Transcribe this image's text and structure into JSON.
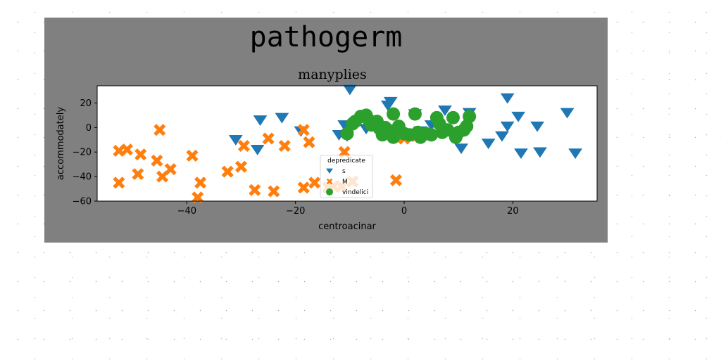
{
  "chart_data": {
    "type": "scatter",
    "suptitle": "pathogerm",
    "title": "manyplies",
    "xlabel": "centroacinar",
    "ylabel": "accommodately",
    "xlim": [
      -56.5,
      35.5
    ],
    "ylim": [
      -60,
      34
    ],
    "xticks": [
      -40,
      -20,
      0,
      20
    ],
    "yticks": [
      -60,
      -40,
      -20,
      0,
      20
    ],
    "legend": {
      "title": "depredicate",
      "placement": "lower-center"
    },
    "background": "#808080",
    "series": [
      {
        "name": "s",
        "marker": "triangle-down",
        "color": "#1f77b4",
        "points": [
          [
            -10,
            31
          ],
          [
            -2.5,
            21
          ],
          [
            -3,
            18
          ],
          [
            2,
            11
          ],
          [
            7.5,
            14
          ],
          [
            12,
            12
          ],
          [
            19,
            24
          ],
          [
            -22.5,
            8
          ],
          [
            -26.5,
            6
          ],
          [
            -11,
            2
          ],
          [
            -9,
            3
          ],
          [
            -19,
            -3
          ],
          [
            -31,
            -10
          ],
          [
            -27,
            -18
          ],
          [
            -10.5,
            -7
          ],
          [
            -12,
            -6
          ],
          [
            10.5,
            -17
          ],
          [
            15.5,
            -13
          ],
          [
            18,
            -7
          ],
          [
            19,
            1
          ],
          [
            21,
            9
          ],
          [
            21.5,
            -21
          ],
          [
            24.5,
            1
          ],
          [
            25,
            -20
          ],
          [
            30,
            12
          ],
          [
            31.5,
            -21
          ],
          [
            -7,
            -1
          ],
          [
            5,
            2
          ],
          [
            3,
            -3
          ]
        ]
      },
      {
        "name": "M",
        "marker": "X",
        "color": "#ff7f0e",
        "points": [
          [
            -52.5,
            -19
          ],
          [
            -51,
            -18
          ],
          [
            -52.5,
            -45
          ],
          [
            -49,
            -38
          ],
          [
            -48.5,
            -22
          ],
          [
            -45.5,
            -27
          ],
          [
            -45,
            -2
          ],
          [
            -44.5,
            -40
          ],
          [
            -43,
            -34
          ],
          [
            -39,
            -23
          ],
          [
            -38,
            -57
          ],
          [
            -37.5,
            -45
          ],
          [
            -32.5,
            -36
          ],
          [
            -30,
            -32
          ],
          [
            -29.5,
            -15
          ],
          [
            -27.5,
            -51
          ],
          [
            -25,
            -9
          ],
          [
            -24,
            -52
          ],
          [
            -22,
            -15
          ],
          [
            -18.5,
            -49
          ],
          [
            -18.5,
            -2
          ],
          [
            -17.5,
            -12
          ],
          [
            -16.5,
            -45
          ],
          [
            -14,
            -49
          ],
          [
            -13,
            -48
          ],
          [
            -11,
            -20
          ],
          [
            -11.5,
            -48
          ],
          [
            -9.5,
            -44
          ],
          [
            -1.5,
            -43
          ],
          [
            -1.5,
            -8
          ],
          [
            0,
            -9
          ],
          [
            1,
            -7
          ]
        ]
      },
      {
        "name": "vindelici",
        "marker": "circle",
        "color": "#2ca02c",
        "points": [
          [
            -10.5,
            -5
          ],
          [
            -9.5,
            3
          ],
          [
            -9,
            5
          ],
          [
            -8,
            9
          ],
          [
            -7,
            10
          ],
          [
            -6.5,
            6
          ],
          [
            -6,
            2
          ],
          [
            -5,
            5
          ],
          [
            -4.5,
            -1
          ],
          [
            -4,
            -6
          ],
          [
            -3.5,
            0
          ],
          [
            -3,
            -2
          ],
          [
            -2,
            11
          ],
          [
            -2,
            -8
          ],
          [
            -1.5,
            -3
          ],
          [
            -1,
            1
          ],
          [
            0,
            -5
          ],
          [
            1,
            -6
          ],
          [
            2,
            11
          ],
          [
            2.5,
            -4
          ],
          [
            3,
            -8
          ],
          [
            4,
            -5
          ],
          [
            5,
            -6
          ],
          [
            6,
            8
          ],
          [
            6.5,
            3
          ],
          [
            7,
            -4
          ],
          [
            8,
            -2
          ],
          [
            9,
            8
          ],
          [
            9.5,
            -8
          ],
          [
            10,
            -4
          ],
          [
            11,
            -2
          ],
          [
            11.5,
            1
          ],
          [
            12,
            9
          ]
        ]
      }
    ]
  }
}
